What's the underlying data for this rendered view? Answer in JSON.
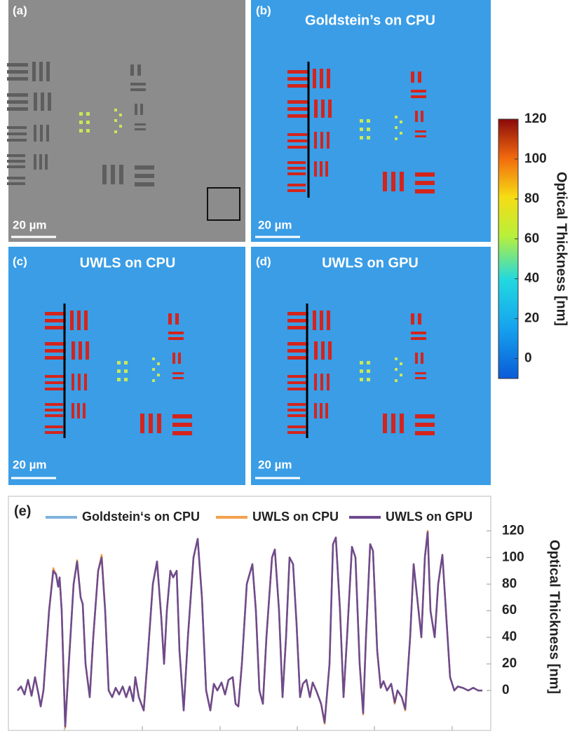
{
  "panels": [
    {
      "label": "(a)",
      "scale_bar": "20 µm"
    },
    {
      "label": "(b)",
      "title": "Goldstein’s on CPU",
      "scale_bar": "20 µm"
    },
    {
      "label": "(c)",
      "title": "UWLS on CPU",
      "scale_bar": "20 µm"
    },
    {
      "label": "(d)",
      "title": "UWLS on GPU",
      "scale_bar": "20 µm"
    }
  ],
  "colorbar": {
    "label": "Optical Thickness [nm]",
    "lim": [
      -10,
      120
    ],
    "ticks": [
      0,
      20,
      40,
      60,
      80,
      100,
      120
    ]
  },
  "chart_data": {
    "type": "line",
    "panel_label": "(e)",
    "y_label": "Optical Thickness [nm]",
    "x": [
      0,
      5,
      10,
      15,
      20,
      25,
      30,
      33,
      37,
      45,
      51,
      55,
      58,
      60,
      63,
      68,
      73,
      80,
      85,
      90,
      93,
      97,
      103,
      108,
      115,
      120,
      125,
      130,
      135,
      140,
      145,
      150,
      155,
      160,
      165,
      168,
      173,
      180,
      185,
      193,
      199,
      205,
      209,
      213,
      218,
      222,
      227,
      231,
      237,
      243,
      251,
      257,
      263,
      269,
      275,
      280,
      285,
      291,
      296,
      301,
      307,
      311,
      315,
      320,
      327,
      335,
      340,
      345,
      350,
      355,
      363,
      367,
      373,
      378,
      383,
      388,
      393,
      398,
      403,
      407,
      412,
      417,
      421,
      426,
      433,
      438,
      445,
      450,
      454,
      460,
      465,
      470,
      477,
      482,
      488,
      493,
      497,
      503,
      507,
      513,
      518,
      522,
      527,
      533,
      538,
      542,
      548,
      553,
      560,
      565,
      570,
      576,
      581,
      585,
      589,
      595,
      600,
      606,
      611,
      617,
      623,
      628,
      635,
      643,
      650,
      657,
      663
    ],
    "xlim": [
      -13,
      675
    ],
    "xticks": [
      67,
      178,
      289,
      399,
      509,
      620
    ],
    "ylim": [
      -30,
      146
    ],
    "yticks": [
      0,
      20,
      40,
      60,
      80,
      100,
      120
    ],
    "series": [
      {
        "name": "Goldstein‘s on CPU",
        "color": "#7fb2dc",
        "values": [
          0,
          3,
          -3,
          8,
          -4,
          10,
          -3,
          -12,
          0,
          60,
          90,
          88,
          78,
          85,
          60,
          -28,
          20,
          80,
          97,
          70,
          65,
          20,
          -5,
          40,
          90,
          100,
          60,
          0,
          -5,
          2,
          -3,
          3,
          -5,
          3,
          -8,
          10,
          -5,
          -15,
          20,
          80,
          97,
          55,
          20,
          60,
          90,
          85,
          90,
          30,
          -15,
          40,
          100,
          114,
          70,
          0,
          -15,
          5,
          0,
          6,
          -3,
          8,
          10,
          -10,
          -12,
          20,
          80,
          95,
          60,
          0,
          -10,
          40,
          100,
          106,
          60,
          -5,
          40,
          100,
          95,
          50,
          -5,
          5,
          8,
          -5,
          6,
          0,
          -10,
          -25,
          20,
          110,
          115,
          60,
          -5,
          40,
          108,
          100,
          20,
          -18,
          40,
          110,
          105,
          30,
          2,
          7,
          0,
          5,
          -10,
          0,
          -5,
          -15,
          40,
          95,
          70,
          40,
          100,
          120,
          60,
          40,
          80,
          102,
          60,
          10,
          0,
          3,
          2,
          0,
          2,
          0,
          0
        ]
      },
      {
        "name": "UWLS on CPU",
        "color": "#f4a04a",
        "values": [
          0,
          3,
          -3,
          8,
          -4,
          10,
          -3,
          -12,
          0,
          60,
          92,
          87,
          78,
          85,
          60,
          -28,
          20,
          80,
          98,
          70,
          65,
          20,
          -5,
          40,
          90,
          102,
          60,
          0,
          -5,
          2,
          -3,
          3,
          -5,
          3,
          -8,
          10,
          -5,
          -15,
          20,
          80,
          97,
          55,
          20,
          60,
          90,
          85,
          90,
          30,
          -15,
          40,
          100,
          114,
          70,
          0,
          -15,
          5,
          0,
          6,
          -3,
          8,
          10,
          -10,
          -12,
          20,
          80,
          95,
          60,
          0,
          -10,
          40,
          100,
          106,
          60,
          -5,
          40,
          100,
          95,
          50,
          -5,
          5,
          8,
          -5,
          6,
          0,
          -10,
          -25,
          20,
          110,
          115,
          60,
          -5,
          40,
          108,
          100,
          20,
          -18,
          40,
          110,
          105,
          30,
          2,
          7,
          0,
          5,
          -10,
          0,
          -5,
          -15,
          40,
          95,
          70,
          40,
          100,
          120,
          60,
          40,
          80,
          102,
          60,
          10,
          0,
          3,
          2,
          0,
          2,
          0,
          0
        ]
      },
      {
        "name": "UWLS on GPU",
        "color": "#6e4a8e",
        "values": [
          0,
          3,
          -3,
          8,
          -4,
          10,
          -3,
          -12,
          0,
          60,
          90,
          87,
          78,
          85,
          60,
          -27,
          18,
          80,
          97,
          70,
          65,
          20,
          -5,
          40,
          90,
          100,
          60,
          0,
          -5,
          2,
          -3,
          3,
          -5,
          3,
          -8,
          10,
          -5,
          -15,
          20,
          80,
          97,
          55,
          20,
          60,
          90,
          85,
          90,
          30,
          -15,
          40,
          100,
          114,
          70,
          0,
          -15,
          5,
          0,
          6,
          -3,
          8,
          10,
          -10,
          -12,
          20,
          80,
          95,
          60,
          0,
          -10,
          40,
          100,
          106,
          60,
          -5,
          40,
          100,
          95,
          50,
          -5,
          5,
          8,
          -5,
          6,
          0,
          -10,
          -24,
          20,
          110,
          115,
          60,
          -5,
          40,
          108,
          100,
          20,
          -17,
          40,
          110,
          105,
          30,
          2,
          7,
          0,
          5,
          -9,
          0,
          -5,
          -14,
          40,
          95,
          70,
          40,
          100,
          119,
          60,
          40,
          80,
          102,
          60,
          10,
          0,
          3,
          2,
          0,
          2,
          0,
          0
        ]
      }
    ]
  }
}
